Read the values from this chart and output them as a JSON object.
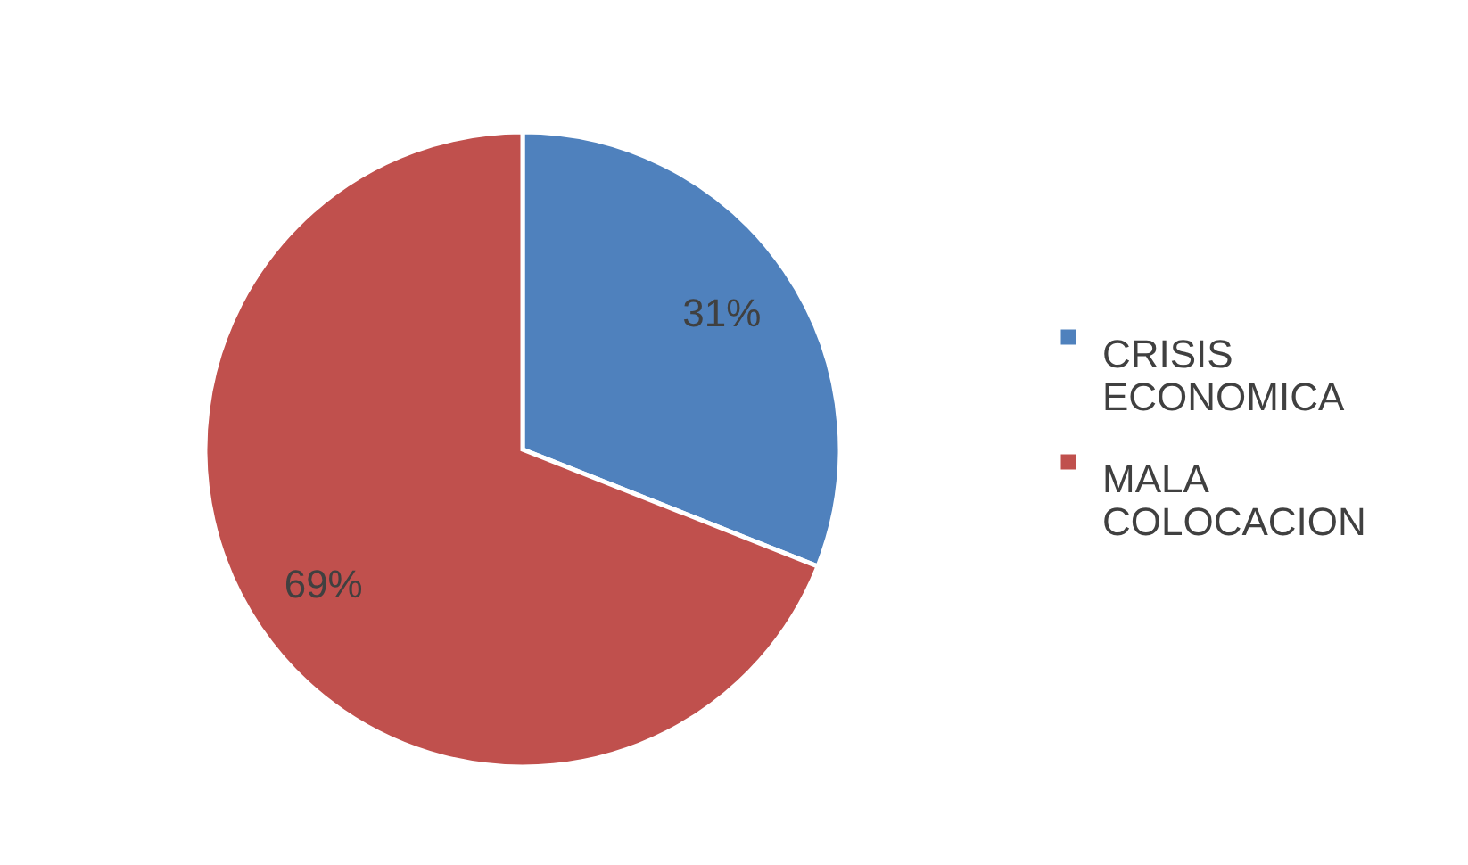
{
  "chart_data": {
    "type": "pie",
    "categories": [
      "CRISIS ECONOMICA",
      "MALA COLOCACION"
    ],
    "values": [
      31,
      69
    ],
    "colors": [
      "#4f81bd",
      "#c0504d"
    ],
    "value_labels": [
      "31%",
      "69%"
    ],
    "legend": "right"
  }
}
